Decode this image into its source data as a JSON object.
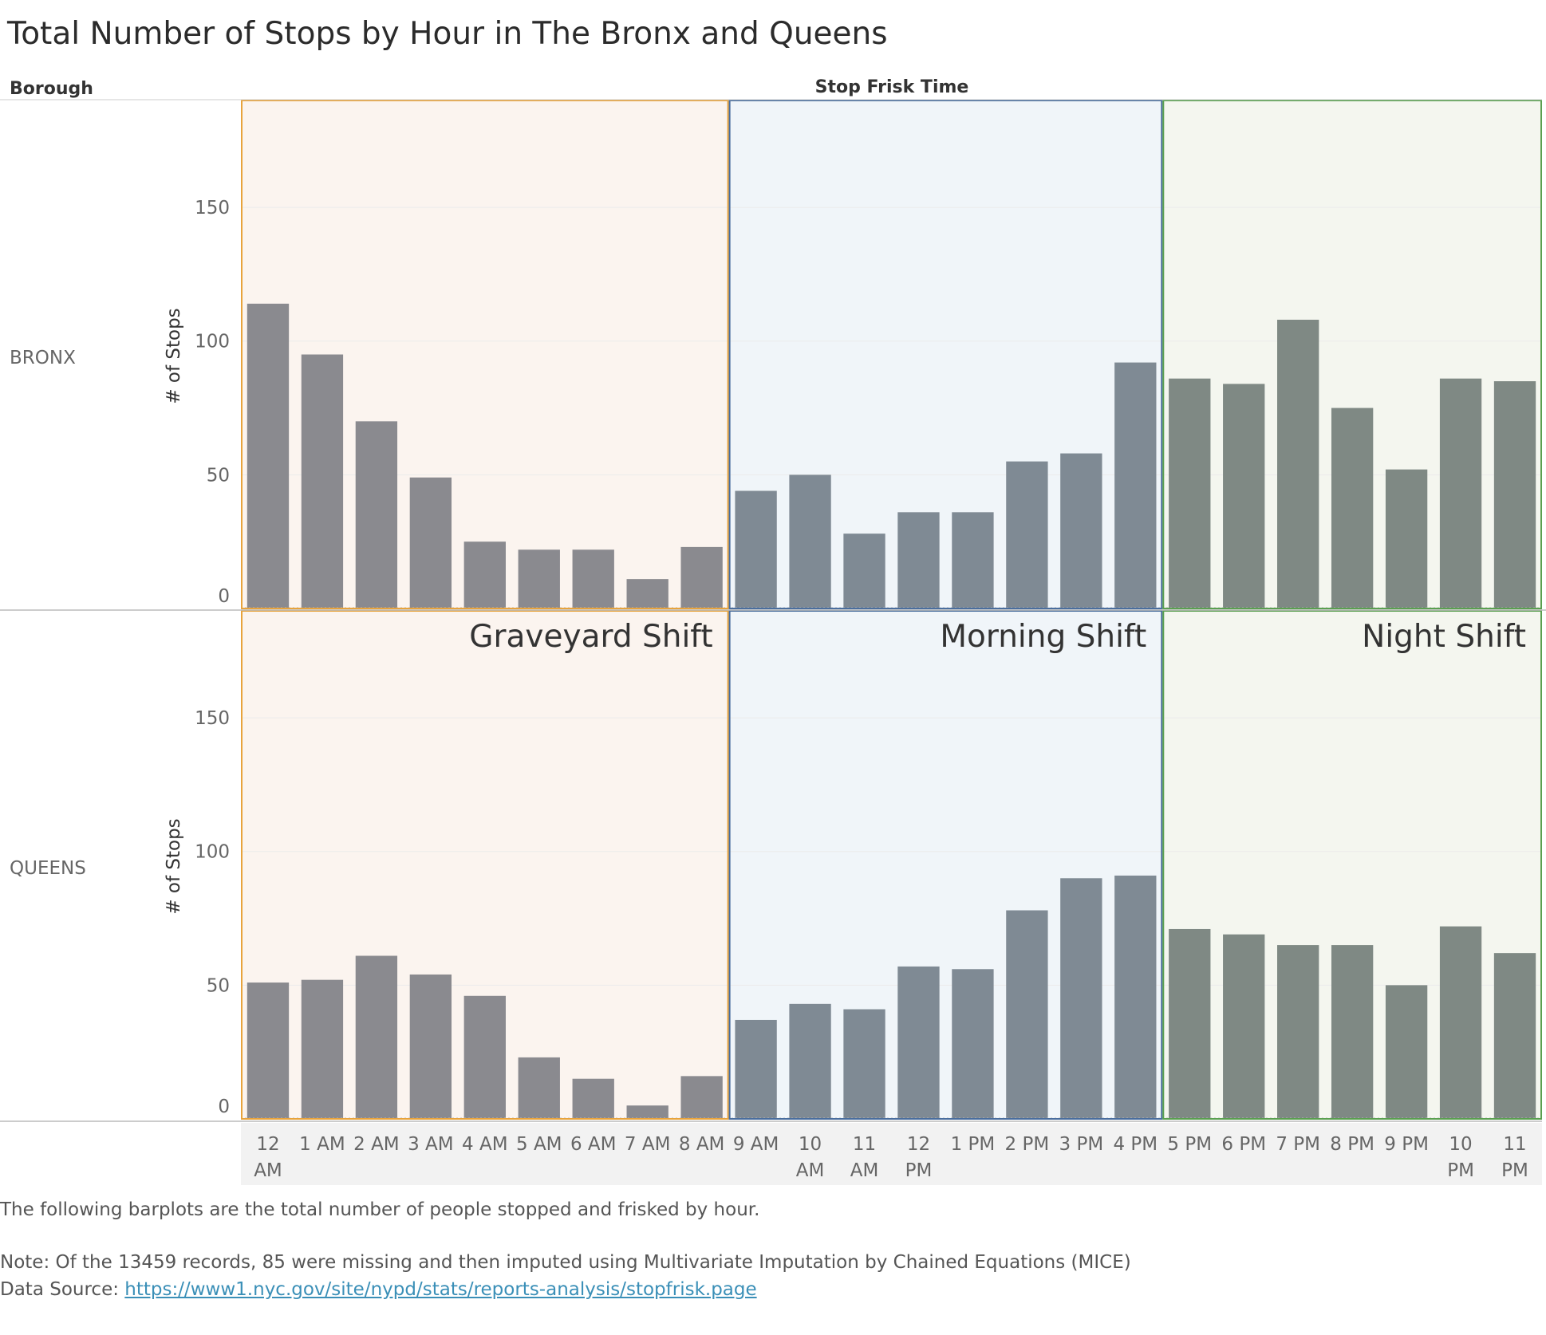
{
  "chart_data": {
    "type": "bar",
    "title": "Total Number of Stops by Hour in The Bronx and Queens",
    "row_header": "Borough",
    "column_header": "Stop Frisk Time",
    "ylabel": "# of Stops",
    "ylim": [
      0,
      190
    ],
    "yticks": [
      "0",
      "50",
      "100",
      "150"
    ],
    "categories": [
      "12 AM",
      "1 AM",
      "2 AM",
      "3 AM",
      "4 AM",
      "5 AM",
      "6 AM",
      "7 AM",
      "8 AM",
      "9 AM",
      "10 AM",
      "11 AM",
      "12 PM",
      "1 PM",
      "2 PM",
      "3 PM",
      "4 PM",
      "5 PM",
      "6 PM",
      "7 PM",
      "8 PM",
      "9 PM",
      "10 PM",
      "11 PM"
    ],
    "shifts": [
      {
        "name": "Graveyard Shift",
        "start": 0,
        "end": 9,
        "border": "#e8a33c",
        "fill": "#fbf4ef",
        "bar": "#8a8a8f"
      },
      {
        "name": "Morning Shift",
        "start": 9,
        "end": 17,
        "border": "#4a6e9e",
        "fill": "#f0f5f9",
        "bar": "#7f8a94"
      },
      {
        "name": "Night Shift",
        "start": 17,
        "end": 24,
        "border": "#5aa050",
        "fill": "#f4f6ef",
        "bar": "#7f8984"
      }
    ],
    "series": [
      {
        "name": "BRONX",
        "values": [
          114,
          95,
          70,
          49,
          25,
          22,
          22,
          11,
          23,
          44,
          50,
          28,
          36,
          36,
          55,
          58,
          92,
          86,
          84,
          108,
          75,
          52,
          86,
          85
        ]
      },
      {
        "name": "QUEENS",
        "values": [
          51,
          52,
          61,
          54,
          46,
          23,
          15,
          5,
          16,
          37,
          43,
          41,
          57,
          56,
          78,
          90,
          91,
          71,
          69,
          65,
          65,
          50,
          72,
          62
        ]
      }
    ]
  },
  "notes": {
    "description": "The following barplots are the total number of people stopped and frisked by hour.",
    "note": "Note: Of the 13459 records, 85 were missing and then imputed using Multivariate Imputation by Chained Equations (MICE)",
    "source_label": "Data Source:",
    "source_url": "https://www1.nyc.gov/site/nypd/stats/reports-analysis/stopfrisk.page"
  }
}
